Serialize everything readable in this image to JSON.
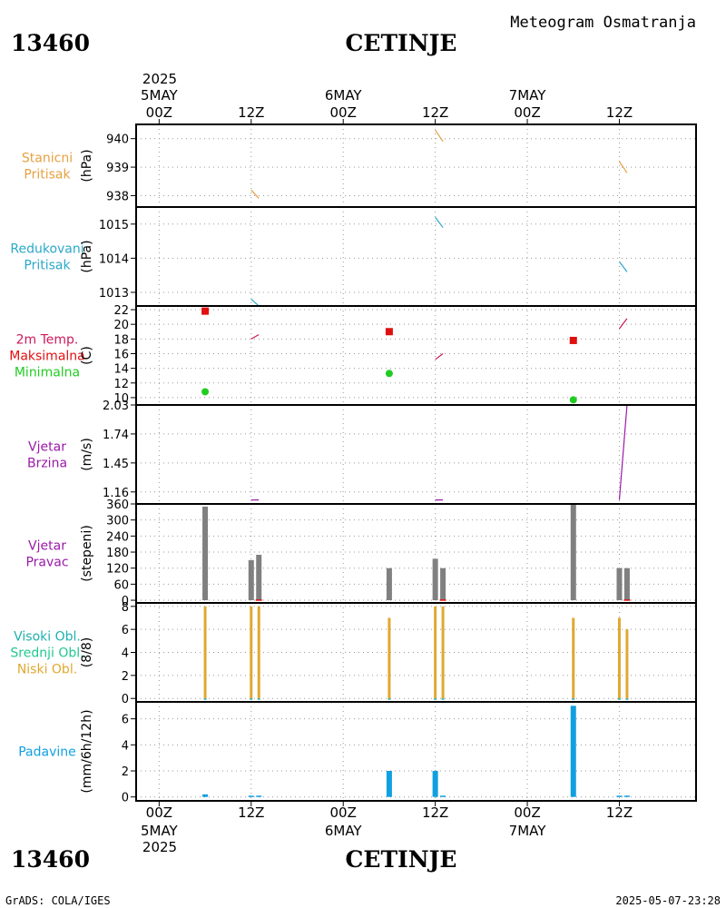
{
  "header": {
    "station_id": "13460",
    "station_name": "CETINJE",
    "chart_title": "Meteogram Osmatranja",
    "footer_left": "GrADS: COLA/IGES",
    "footer_right": "2025-05-07-23:28"
  },
  "colors": {
    "pressure": "#e6a040",
    "reduced": "#2aa8c8",
    "temp": "#cc1a5c",
    "tmax": "#e01010",
    "tmin": "#20cc20",
    "wind": "#9a1aa8",
    "dirbar": "#808080",
    "cloud_high": "#20b0b0",
    "cloud_mid": "#20c890",
    "cloud_low": "#e0a830",
    "precip": "#10a0e0",
    "grid": "#999999"
  },
  "time_axis": {
    "top_year": "2025",
    "top_labels": [
      {
        "t": 0,
        "hour": "00Z",
        "date": "5MAY"
      },
      {
        "t": 12,
        "hour": "12Z",
        "date": ""
      },
      {
        "t": 24,
        "hour": "00Z",
        "date": "6MAY"
      },
      {
        "t": 36,
        "hour": "12Z",
        "date": ""
      },
      {
        "t": 48,
        "hour": "00Z",
        "date": "7MAY"
      },
      {
        "t": 60,
        "hour": "12Z",
        "date": ""
      }
    ],
    "bottom_year": "2025",
    "t_range": [
      -3,
      70
    ]
  },
  "panels": [
    {
      "id": "stanicni",
      "labels": [
        "Stanicni",
        "Pritisak"
      ],
      "label_colors": [
        "pressure",
        "pressure"
      ],
      "ylabel": "(hPa)",
      "ticks": [
        "938",
        "939",
        "940"
      ]
    },
    {
      "id": "redukovani",
      "labels": [
        "Redukovani",
        "Pritisak"
      ],
      "label_colors": [
        "reduced",
        "reduced"
      ],
      "ylabel": "(hPa)",
      "ticks": [
        "1013",
        "1014",
        "1015"
      ]
    },
    {
      "id": "temp",
      "labels": [
        "2m Temp.",
        "Maksimalna",
        "Minimalna"
      ],
      "label_colors": [
        "temp",
        "tmax",
        "tmin"
      ],
      "ylabel": "(C)",
      "ticks": [
        "10",
        "12",
        "14",
        "16",
        "18",
        "20",
        "22"
      ]
    },
    {
      "id": "vjetar",
      "labels": [
        "Vjetar",
        "Brzina"
      ],
      "label_colors": [
        "wind",
        "wind"
      ],
      "ylabel": "(m/s)",
      "ticks": [
        "1.16",
        "1.45",
        "1.74",
        "2.03"
      ]
    },
    {
      "id": "pravac",
      "labels": [
        "Vjetar",
        "Pravac"
      ],
      "label_colors": [
        "wind",
        "wind"
      ],
      "ylabel": "(stepeni)",
      "ticks": [
        "0",
        "60",
        "120",
        "180",
        "240",
        "300",
        "360"
      ]
    },
    {
      "id": "oblaci",
      "labels": [
        "Visoki Obl.",
        "Srednji Obl.",
        "Niski Obl."
      ],
      "label_colors": [
        "cloud_high",
        "cloud_mid",
        "cloud_low"
      ],
      "ylabel": "(8/8)",
      "ticks": [
        "0",
        "2",
        "4",
        "6",
        "8"
      ]
    },
    {
      "id": "padavine",
      "labels": [
        "Padavine"
      ],
      "label_colors": [
        "precip"
      ],
      "ylabel": "(mm/6h/12h)",
      "ticks": [
        "0",
        "2",
        "4",
        "6"
      ]
    }
  ],
  "chart_data": [
    {
      "type": "line",
      "title": "Stanicni Pritisak",
      "ylabel": "(hPa)",
      "ylim": [
        937.6,
        940.5
      ],
      "series": [
        {
          "name": "Stanicni Pritisak",
          "color": "pressure",
          "segments": [
            {
              "x": [
                12,
                13
              ],
              "y": [
                938.2,
                937.9
              ]
            },
            {
              "x": [
                36,
                37
              ],
              "y": [
                940.3,
                939.9
              ]
            },
            {
              "x": [
                60,
                61
              ],
              "y": [
                939.2,
                938.8
              ]
            }
          ]
        }
      ]
    },
    {
      "type": "line",
      "title": "Redukovani Pritisak",
      "ylabel": "(hPa)",
      "ylim": [
        1012.6,
        1015.5
      ],
      "series": [
        {
          "name": "Redukovani Pritisak",
          "color": "reduced",
          "segments": [
            {
              "x": [
                12,
                13
              ],
              "y": [
                1012.8,
                1012.6
              ]
            },
            {
              "x": [
                36,
                37
              ],
              "y": [
                1015.2,
                1014.9
              ]
            },
            {
              "x": [
                60,
                61
              ],
              "y": [
                1013.9,
                1013.6
              ]
            }
          ]
        }
      ]
    },
    {
      "type": "line",
      "title": "2m Temp.",
      "ylabel": "(C)",
      "ylim": [
        9.0,
        22.5
      ],
      "series": [
        {
          "name": "2m Temp.",
          "color": "temp",
          "segments": [
            {
              "x": [
                12,
                13
              ],
              "y": [
                18.0,
                18.6
              ]
            },
            {
              "x": [
                36,
                37
              ],
              "y": [
                15.2,
                16.0
              ]
            },
            {
              "x": [
                60,
                61
              ],
              "y": [
                19.4,
                20.8
              ]
            }
          ]
        },
        {
          "name": "Maksimalna",
          "color": "tmax",
          "marker": "square",
          "x": [
            6,
            30,
            54
          ],
          "y": [
            21.8,
            19.0,
            17.8
          ]
        },
        {
          "name": "Minimalna",
          "color": "tmin",
          "marker": "circle",
          "x": [
            6,
            30,
            54
          ],
          "y": [
            10.8,
            13.3,
            9.7
          ]
        }
      ]
    },
    {
      "type": "line",
      "title": "Vjetar Brzina",
      "ylabel": "(m/s)",
      "ylim": [
        1.04,
        2.03
      ],
      "series": [
        {
          "name": "Vjetar Brzina",
          "color": "wind",
          "segments": [
            {
              "x": [
                12,
                13
              ],
              "y": [
                1.08,
                1.08
              ]
            },
            {
              "x": [
                36,
                37
              ],
              "y": [
                1.08,
                1.08
              ]
            },
            {
              "x": [
                60,
                61
              ],
              "y": [
                1.08,
                2.03
              ]
            }
          ]
        }
      ]
    },
    {
      "type": "bar",
      "title": "Vjetar Pravac",
      "ylabel": "(stepeni)",
      "ylim": [
        -10,
        360
      ],
      "series": [
        {
          "name": "Pravac",
          "color": "dirbar",
          "x": [
            6,
            12,
            13,
            30,
            36,
            37,
            54,
            60,
            61
          ],
          "values": [
            350,
            150,
            170,
            120,
            155,
            120,
            360,
            120,
            120
          ]
        },
        {
          "name": "Brzina",
          "color": "tmax",
          "x": [
            13,
            37,
            61
          ],
          "values": [
            3,
            3,
            3
          ]
        }
      ]
    },
    {
      "type": "bar",
      "title": "Oblaci",
      "ylabel": "(8/8)",
      "ylim": [
        -0.3,
        8.3
      ],
      "series": [
        {
          "name": "Niski Obl.",
          "color": "cloud_low",
          "x": [
            6,
            12,
            13,
            30,
            36,
            37,
            54,
            60,
            61
          ],
          "values": [
            8,
            8,
            8,
            7,
            8,
            8,
            7,
            7,
            6
          ]
        },
        {
          "name": "Visoki Obl.",
          "color": "cloud_high",
          "x": [
            6,
            12,
            13,
            30,
            36,
            37,
            54,
            60,
            61
          ],
          "values": [
            0,
            0,
            0,
            0,
            0,
            0,
            0,
            0,
            0
          ]
        }
      ]
    },
    {
      "type": "bar",
      "title": "Padavine",
      "ylabel": "(mm/6h/12h)",
      "ylim": [
        -0.3,
        7.3
      ],
      "series": [
        {
          "name": "Padavine",
          "color": "precip",
          "x": [
            6,
            12,
            13,
            30,
            36,
            37,
            54,
            60,
            61
          ],
          "values": [
            0.2,
            0.1,
            0.1,
            2.0,
            2.0,
            0.1,
            7.0,
            0.1,
            0.1
          ]
        }
      ]
    }
  ]
}
